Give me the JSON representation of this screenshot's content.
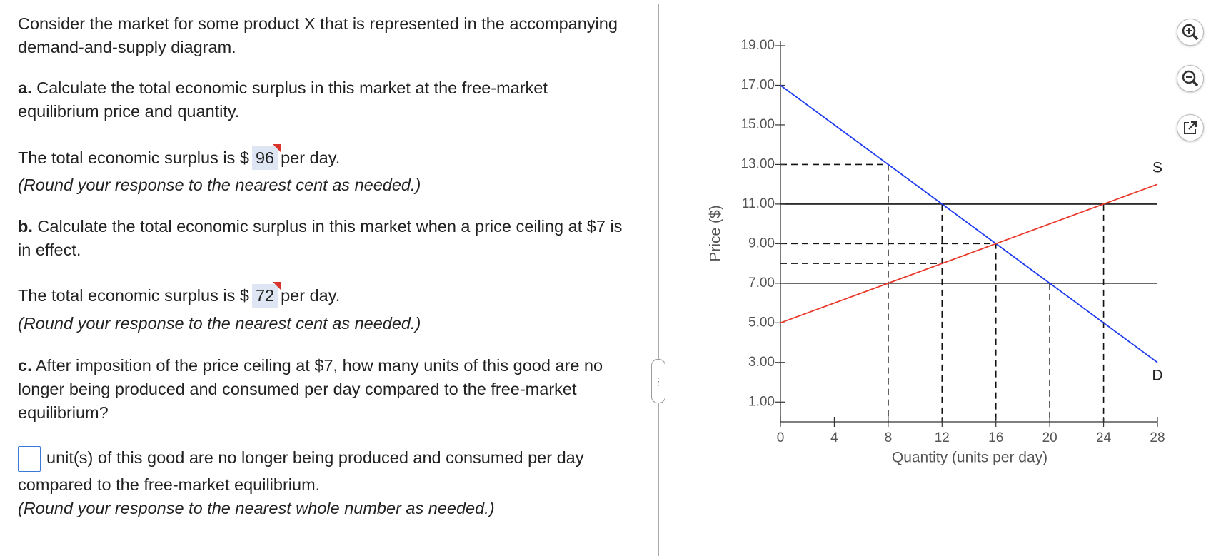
{
  "question": {
    "intro": "Consider the market for some product X that is represented in the accompanying demand-and-supply diagram.",
    "parts": [
      {
        "label": "a.",
        "text": "Calculate the total economic surplus in this market at the free-market equilibrium price and quantity.",
        "answer_prefix": "The total economic surplus is $",
        "answer": "96",
        "answer_suffix": "per day.",
        "hint": "(Round your response to the nearest cent as needed.)"
      },
      {
        "label": "b.",
        "text": "Calculate the total economic surplus in this market when a price ceiling at $7 is in effect.",
        "answer_prefix": "The total economic surplus is $",
        "answer": "72",
        "answer_suffix": "per day.",
        "hint": "(Round your response to the nearest cent as needed.)"
      },
      {
        "label": "c.",
        "text": "After imposition of the price ceiling at $7, how many units of this good are no longer being produced and consumed per day compared to the free-market equilibrium?",
        "answer_suffix": "unit(s) of this good are no longer being produced and consumed per day compared to the free-market equilibrium.",
        "hint": "(Round your response to the nearest whole number as needed.)"
      }
    ]
  },
  "chart_data": {
    "type": "line",
    "x_label": "Quantity (units per day)",
    "y_label": "Price ($)",
    "xlim": [
      0,
      28
    ],
    "ylim": [
      0,
      19
    ],
    "xticks": [
      0,
      4,
      8,
      12,
      16,
      20,
      24,
      28
    ],
    "yticks": [
      {
        "value": 1,
        "label": "1.00"
      },
      {
        "value": 3,
        "label": "3.00"
      },
      {
        "value": 5,
        "label": "5.00"
      },
      {
        "value": 7,
        "label": "7.00"
      },
      {
        "value": 9,
        "label": "9.00"
      },
      {
        "value": 11,
        "label": "11.00"
      },
      {
        "value": 13,
        "label": "13.00"
      },
      {
        "value": 15,
        "label": "15.00"
      },
      {
        "value": 17,
        "label": "17.00"
      },
      {
        "value": 19,
        "label": "19.00"
      }
    ],
    "series": [
      {
        "name": "D",
        "color": "#1f3cf0",
        "x": [
          0,
          28
        ],
        "values": [
          17,
          3
        ]
      },
      {
        "name": "S",
        "color": "#e8392a",
        "x": [
          0,
          28
        ],
        "values": [
          5,
          12
        ]
      }
    ],
    "guides": [
      {
        "style": "solid",
        "x": [
          0,
          28
        ],
        "values": [
          11,
          11
        ]
      },
      {
        "style": "solid",
        "x": [
          0,
          28
        ],
        "values": [
          7,
          7
        ]
      },
      {
        "style": "dashed",
        "x": [
          0,
          8,
          8
        ],
        "values": [
          13,
          13,
          0
        ]
      },
      {
        "style": "dashed",
        "x": [
          0,
          16,
          16
        ],
        "values": [
          9,
          9,
          0
        ]
      },
      {
        "style": "dashed",
        "x": [
          0,
          12
        ],
        "values": [
          8,
          8
        ]
      },
      {
        "style": "dashed",
        "x": [
          12,
          12
        ],
        "values": [
          11,
          0
        ]
      },
      {
        "style": "dashed",
        "x": [
          20,
          20
        ],
        "values": [
          7,
          0
        ]
      },
      {
        "style": "dashed",
        "x": [
          24,
          24
        ],
        "values": [
          11,
          0
        ]
      }
    ]
  }
}
